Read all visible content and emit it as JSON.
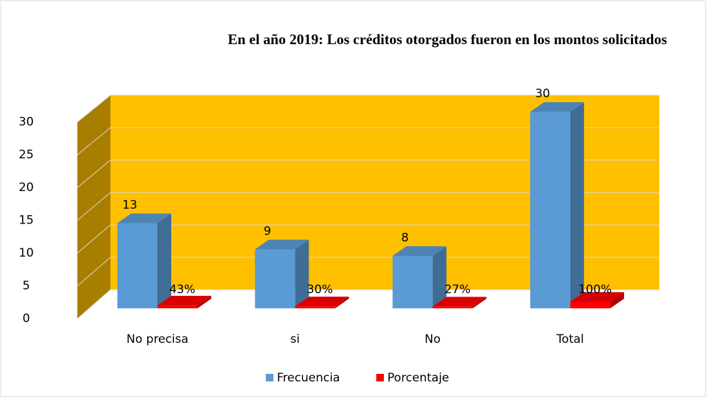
{
  "chart_data": {
    "type": "bar3d",
    "title": "En el año 2019: Los créditos otorgados fueron en los montos solicitados",
    "categories": [
      "No precisa",
      "si",
      "No",
      "Total"
    ],
    "series": [
      {
        "name": "Frecuencia",
        "color": "#5b9bd5",
        "values": [
          13,
          9,
          8,
          30
        ]
      },
      {
        "name": "Porcentaje",
        "color": "#ff0000",
        "values": [
          0.43,
          0.3,
          0.27,
          1.0
        ],
        "value_labels": [
          "43%",
          "30%",
          "27%",
          "100%"
        ]
      }
    ],
    "ylim": [
      0,
      30
    ],
    "yticks": [
      0,
      5,
      10,
      15,
      20,
      25,
      30
    ],
    "grid": true,
    "wall_color": "#ffc000",
    "legend": "bottom"
  }
}
